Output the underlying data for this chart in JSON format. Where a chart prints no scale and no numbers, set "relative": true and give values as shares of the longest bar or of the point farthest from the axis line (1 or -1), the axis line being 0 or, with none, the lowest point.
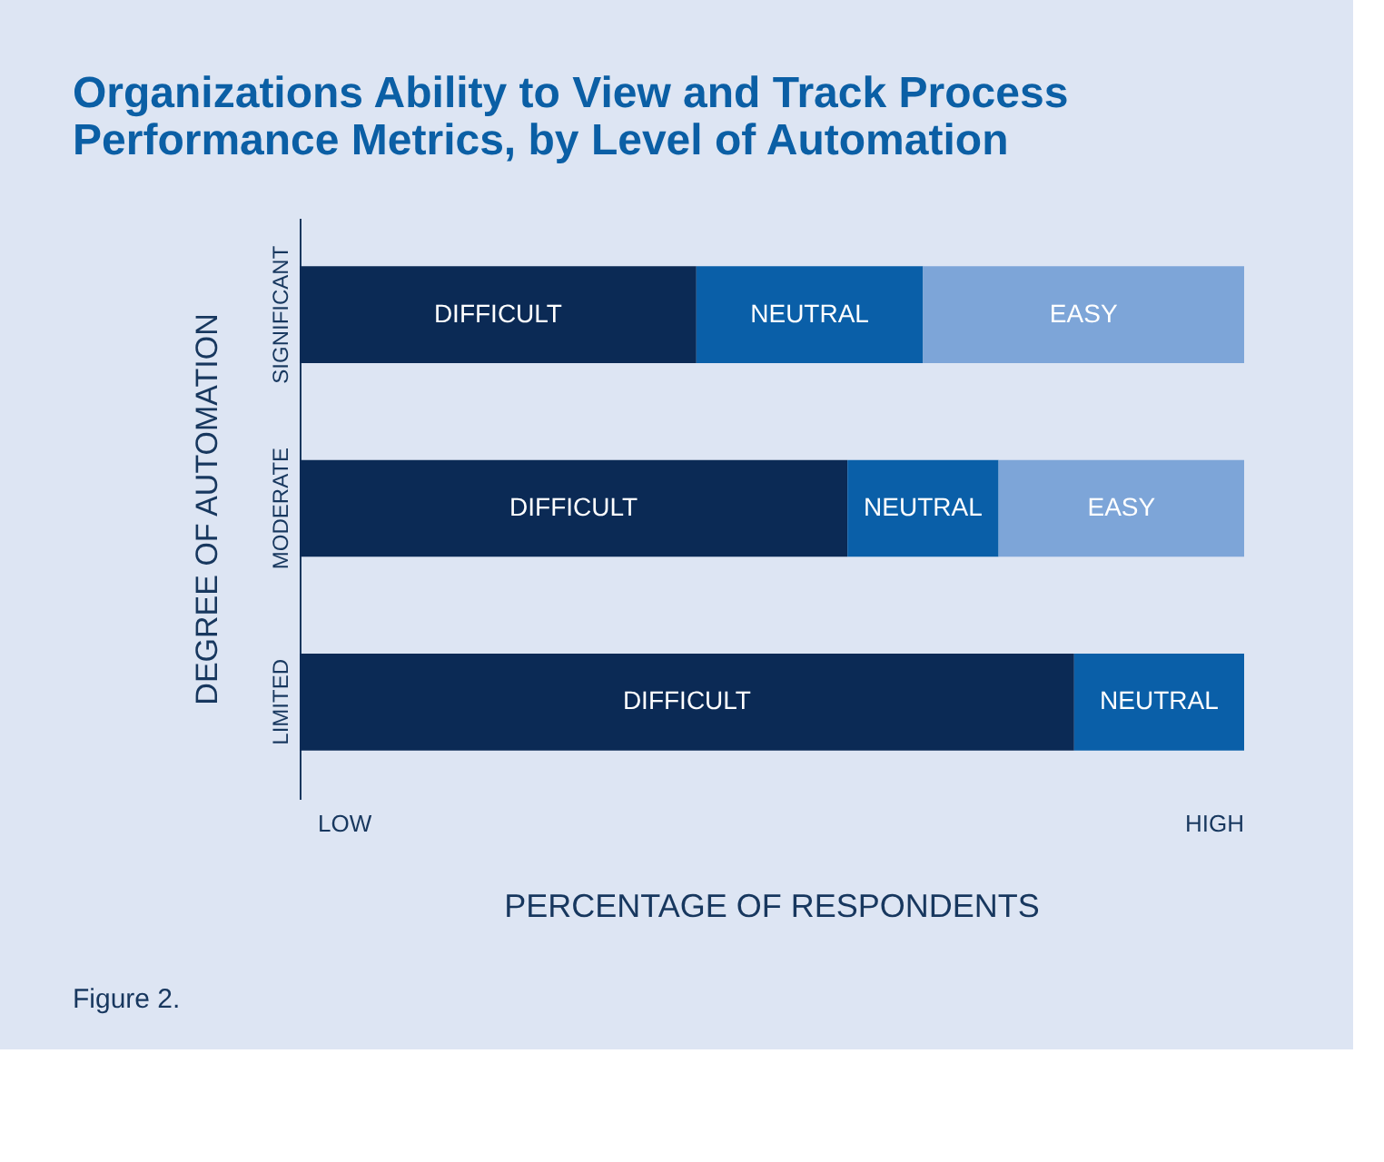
{
  "chart_data": {
    "type": "bar",
    "orientation": "horizontal",
    "stacked": true,
    "relative": true,
    "title": "Organizations Ability to View and Track Process Performance Metrics, by Level of Automation",
    "xlabel": "PERCENTAGE OF RESPONDENTS",
    "ylabel": "DEGREE OF AUTOMATION",
    "categories": [
      "SIGNIFICANT",
      "MODERATE",
      "LIMITED"
    ],
    "series": [
      {
        "name": "DIFFICULT",
        "color": "#0b2a55",
        "values": [
          0.42,
          0.58,
          0.82
        ]
      },
      {
        "name": "NEUTRAL",
        "color": "#0a5fa8",
        "values": [
          0.24,
          0.16,
          0.18
        ]
      },
      {
        "name": "EASY",
        "color": "#7da5d8",
        "values": [
          0.34,
          0.26,
          null
        ]
      }
    ],
    "annotations": [
      "LOW",
      "HIGH",
      "Figure 2."
    ],
    "legend": false,
    "grid": false
  }
}
